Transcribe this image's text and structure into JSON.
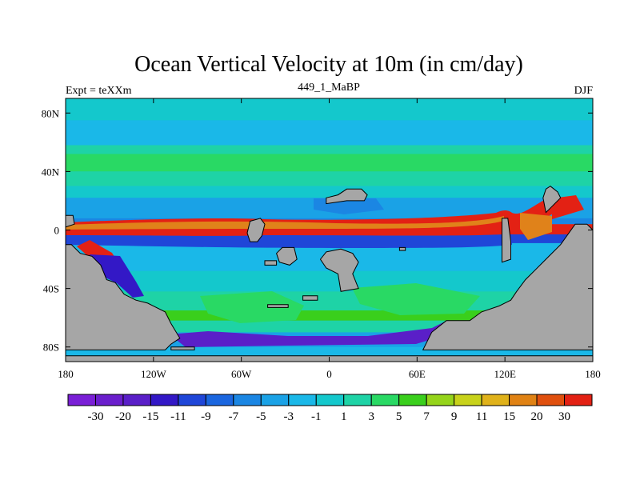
{
  "chart_data": {
    "type": "heatmap",
    "title": "Ocean Vertical Velocity at 10m (in cm/day)",
    "left_label": "Expt = teXXm",
    "center_label": "449_1_MaBP",
    "right_label": "DJF",
    "x_axis": {
      "range": [
        -180,
        180
      ],
      "ticks": [
        {
          "value": -180,
          "label": "180"
        },
        {
          "value": -120,
          "label": "120W"
        },
        {
          "value": -60,
          "label": "60W"
        },
        {
          "value": 0,
          "label": "0"
        },
        {
          "value": 60,
          "label": "60E"
        },
        {
          "value": 120,
          "label": "120E"
        },
        {
          "value": 180,
          "label": "180"
        }
      ]
    },
    "y_axis": {
      "range": [
        -90,
        90
      ],
      "ticks": [
        {
          "value": 80,
          "label": "80N"
        },
        {
          "value": 40,
          "label": "40N"
        },
        {
          "value": 0,
          "label": "0"
        },
        {
          "value": -40,
          "label": "40S"
        },
        {
          "value": -80,
          "label": "80S"
        }
      ]
    },
    "colorbar": {
      "levels": [
        "-30",
        "-20",
        "-15",
        "-11",
        "-9",
        "-7",
        "-5",
        "-3",
        "-1",
        "1",
        "3",
        "5",
        "7",
        "9",
        "11",
        "15",
        "20",
        "30"
      ],
      "colors": [
        "#7a1fd6",
        "#6a1ecc",
        "#5a1fc8",
        "#3318c6",
        "#1f46d8",
        "#1a66df",
        "#1b86e3",
        "#1aa2e6",
        "#1ab8e8",
        "#14c8cc",
        "#1ed3a6",
        "#29d964",
        "#3acf1c",
        "#95d41a",
        "#c8d21a",
        "#e0b21a",
        "#e08214",
        "#e0500e",
        "#e32114"
      ]
    },
    "background_color": "#1ab8e8",
    "land_color": "#a6a6a6",
    "zonal_bands": [
      {
        "lat_range": [
          90,
          75
        ],
        "color": "#14c8cc"
      },
      {
        "lat_range": [
          75,
          58
        ],
        "color": "#1ab8e8"
      },
      {
        "lat_range": [
          58,
          52
        ],
        "color": "#1ed3a6"
      },
      {
        "lat_range": [
          52,
          40
        ],
        "color": "#29d964"
      },
      {
        "lat_range": [
          40,
          30
        ],
        "color": "#1ed3a6"
      },
      {
        "lat_range": [
          30,
          22
        ],
        "color": "#14c8cc"
      },
      {
        "lat_range": [
          22,
          8
        ],
        "color": "#1aa2e6"
      },
      {
        "lat_range": [
          8,
          4
        ],
        "color": "#1b86e3"
      },
      {
        "lat_range": [
          4,
          -3
        ],
        "color": "#e32114"
      },
      {
        "lat_range": [
          -3,
          -9
        ],
        "color": "#1f46d8"
      },
      {
        "lat_range": [
          -9,
          -28
        ],
        "color": "#1ab8e8"
      },
      {
        "lat_range": [
          -28,
          -42
        ],
        "color": "#14c8cc"
      },
      {
        "lat_range": [
          -42,
          -55
        ],
        "color": "#1ed3a6"
      },
      {
        "lat_range": [
          -55,
          -62
        ],
        "color": "#3acf1c"
      },
      {
        "lat_range": [
          -62,
          -70
        ],
        "color": "#1ed3a6"
      },
      {
        "lat_range": [
          -70,
          -80
        ],
        "color": "#1aa2e6"
      }
    ],
    "land_polygons": [
      [
        [
          -180,
          -10
        ],
        [
          -176,
          -10
        ],
        [
          -170,
          -16
        ],
        [
          -162,
          -18
        ],
        [
          -156,
          -24
        ],
        [
          -152,
          -34
        ],
        [
          -146,
          -36
        ],
        [
          -140,
          -44
        ],
        [
          -132,
          -48
        ],
        [
          -124,
          -50
        ],
        [
          -112,
          -56
        ],
        [
          -108,
          -64
        ],
        [
          -102,
          -74
        ],
        [
          -108,
          -78
        ],
        [
          -112,
          -82
        ],
        [
          -180,
          -82
        ]
      ],
      [
        [
          -180,
          -86
        ],
        [
          180,
          -86
        ],
        [
          180,
          -90
        ],
        [
          -180,
          -90
        ]
      ],
      [
        [
          -108,
          -80
        ],
        [
          -92,
          -80
        ],
        [
          -92,
          -82
        ],
        [
          -108,
          -82
        ]
      ],
      [
        [
          64,
          -82
        ],
        [
          70,
          -70
        ],
        [
          80,
          -62
        ],
        [
          96,
          -62
        ],
        [
          104,
          -56
        ],
        [
          116,
          -52
        ],
        [
          124,
          -48
        ],
        [
          128,
          -42
        ],
        [
          134,
          -34
        ],
        [
          140,
          -28
        ],
        [
          150,
          -18
        ],
        [
          158,
          -10
        ],
        [
          168,
          4
        ],
        [
          176,
          4
        ],
        [
          180,
          0
        ],
        [
          180,
          -82
        ]
      ],
      [
        [
          151,
          30
        ],
        [
          156,
          26
        ],
        [
          158,
          22
        ],
        [
          152,
          16
        ],
        [
          148,
          12
        ],
        [
          146,
          22
        ],
        [
          148,
          28
        ]
      ],
      [
        [
          -54,
          6
        ],
        [
          -47,
          8
        ],
        [
          -44,
          4
        ],
        [
          -46,
          -4
        ],
        [
          -49,
          -8
        ],
        [
          -54,
          -8
        ],
        [
          -56,
          -2
        ]
      ],
      [
        [
          -2,
          -15
        ],
        [
          8,
          -13
        ],
        [
          16,
          -16
        ],
        [
          20,
          -22
        ],
        [
          16,
          -30
        ],
        [
          20,
          -40
        ],
        [
          8,
          -42
        ],
        [
          6,
          -30
        ],
        [
          -2,
          -26
        ],
        [
          -6,
          -20
        ]
      ],
      [
        [
          -2,
          22
        ],
        [
          6,
          24
        ],
        [
          12,
          28
        ],
        [
          22,
          28
        ],
        [
          26,
          24
        ],
        [
          24,
          20
        ],
        [
          12,
          20
        ],
        [
          -2,
          18
        ]
      ],
      [
        [
          -18,
          -45
        ],
        [
          -8,
          -45
        ],
        [
          -8,
          -48
        ],
        [
          -18,
          -48
        ]
      ],
      [
        [
          -42,
          -51
        ],
        [
          -28,
          -51
        ],
        [
          -28,
          -53
        ],
        [
          -42,
          -53
        ]
      ],
      [
        [
          -32,
          -12
        ],
        [
          -24,
          -12
        ],
        [
          -22,
          -20
        ],
        [
          -27,
          -24
        ],
        [
          -34,
          -22
        ],
        [
          -36,
          -16
        ]
      ],
      [
        [
          -44,
          -21
        ],
        [
          -36,
          -21
        ],
        [
          -36,
          -24
        ],
        [
          -44,
          -24
        ]
      ],
      [
        [
          118,
          8
        ],
        [
          122,
          8
        ],
        [
          124,
          -8
        ],
        [
          124,
          -20
        ],
        [
          118,
          -22
        ],
        [
          118,
          -10
        ]
      ],
      [
        [
          -180,
          10
        ],
        [
          -175,
          10
        ],
        [
          -174,
          4
        ],
        [
          -180,
          2
        ]
      ],
      [
        [
          48,
          -12
        ],
        [
          52,
          -12
        ],
        [
          52,
          -14
        ],
        [
          48,
          -14
        ]
      ]
    ]
  }
}
